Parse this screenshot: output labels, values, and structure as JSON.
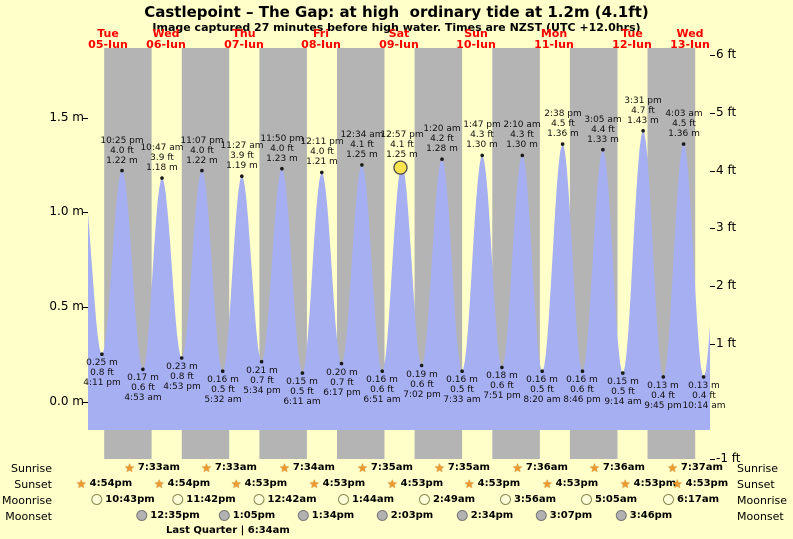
{
  "title": "Castlepoint – The Gap: at high  ordinary tide at 1.2m (4.1ft)",
  "subtitle": "Image captured 27 minutes before high water. Times are NZST (UTC +12.0hrs)",
  "moon_phase": "Last Quarter | 6:34am",
  "astro_row_labels": [
    "Sunrise",
    "Sunset",
    "Moonrise",
    "Moonset"
  ],
  "colors": {
    "page_bg": "#ffffc9",
    "day_band": "#ffffc9",
    "night_band": "#b4b4b4",
    "tide_fill": "#a6aff2",
    "day_label_red": "#ff0000",
    "marker_yellow": "#ffe44d",
    "star_gold": "#ef9a2e",
    "moonrise_icon": "#ffffd9",
    "moonset_icon": "#b2b2b2"
  },
  "chart_data": {
    "type": "area",
    "title": "Castlepoint – The Gap tide curve",
    "y_left_unit": "m",
    "y_right_unit": "ft",
    "y_left_range_m": [
      -0.28,
      1.87
    ],
    "y_right_range_ft": [
      -1,
      6
    ],
    "y_axis_left": [
      {
        "label": "1.5 m",
        "m": 1.5
      },
      {
        "label": "1.0 m",
        "m": 1.0
      },
      {
        "label": "0.5 m",
        "m": 0.5
      },
      {
        "label": "0.0 m",
        "m": 0.0
      }
    ],
    "y_axis_right": [
      {
        "label": "6 ft",
        "ft": 6
      },
      {
        "label": "5 ft",
        "ft": 5
      },
      {
        "label": "4 ft",
        "ft": 4
      },
      {
        "label": "3 ft",
        "ft": 3
      },
      {
        "label": "2 ft",
        "ft": 2
      },
      {
        "label": "1 ft",
        "ft": 1
      },
      {
        "label": "-1 ft",
        "ft": -1
      }
    ],
    "days": [
      {
        "name": "Tue",
        "date": "05-Jun"
      },
      {
        "name": "Wed",
        "date": "06-Jun"
      },
      {
        "name": "Thu",
        "date": "07-Jun"
      },
      {
        "name": "Fri",
        "date": "08-Jun"
      },
      {
        "name": "Sat",
        "date": "09-Jun"
      },
      {
        "name": "Sun",
        "date": "10-Jun"
      },
      {
        "name": "Mon",
        "date": "11-Jun"
      },
      {
        "name": "Tue",
        "date": "12-Jun"
      },
      {
        "name": "Wed",
        "date": "13-Jun"
      }
    ],
    "tide_events": [
      {
        "day": 0,
        "type": "low",
        "time": "4:11 pm",
        "height_m": 0.25,
        "height_ft": 0.8
      },
      {
        "day": 0,
        "type": "high",
        "time": "10:25 pm",
        "height_m": 1.22,
        "height_ft": 4.0
      },
      {
        "day": 1,
        "type": "low",
        "time": "4:53 am",
        "height_m": 0.17,
        "height_ft": 0.6
      },
      {
        "day": 1,
        "type": "high",
        "time": "10:47 am",
        "height_m": 1.18,
        "height_ft": 3.9
      },
      {
        "day": 1,
        "type": "low",
        "time": "4:53 pm",
        "height_m": 0.23,
        "height_ft": 0.8
      },
      {
        "day": 1,
        "type": "high",
        "time": "11:07 pm",
        "height_m": 1.22,
        "height_ft": 4.0
      },
      {
        "day": 2,
        "type": "low",
        "time": "5:32 am",
        "height_m": 0.16,
        "height_ft": 0.5
      },
      {
        "day": 2,
        "type": "high",
        "time": "11:27 am",
        "height_m": 1.19,
        "height_ft": 3.9
      },
      {
        "day": 2,
        "type": "low",
        "time": "5:34 pm",
        "height_m": 0.21,
        "height_ft": 0.7
      },
      {
        "day": 2,
        "type": "high",
        "time": "11:50 pm",
        "height_m": 1.23,
        "height_ft": 4.0
      },
      {
        "day": 3,
        "type": "low",
        "time": "6:11 am",
        "height_m": 0.15,
        "height_ft": 0.5
      },
      {
        "day": 3,
        "type": "high",
        "time": "12:11 pm",
        "height_m": 1.21,
        "height_ft": 4.0
      },
      {
        "day": 3,
        "type": "low",
        "time": "6:17 pm",
        "height_m": 0.2,
        "height_ft": 0.7
      },
      {
        "day": 4,
        "type": "high",
        "time": "12:34 am",
        "height_m": 1.25,
        "height_ft": 4.1
      },
      {
        "day": 4,
        "type": "low",
        "time": "6:51 am",
        "height_m": 0.16,
        "height_ft": 0.6
      },
      {
        "day": 4,
        "type": "high",
        "time": "12:57 pm",
        "height_m": 1.25,
        "height_ft": 4.1,
        "current": true
      },
      {
        "day": 4,
        "type": "low",
        "time": "7:02 pm",
        "height_m": 0.19,
        "height_ft": 0.6
      },
      {
        "day": 5,
        "type": "high",
        "time": "1:20 am",
        "height_m": 1.28,
        "height_ft": 4.2
      },
      {
        "day": 5,
        "type": "low",
        "time": "7:33 am",
        "height_m": 0.16,
        "height_ft": 0.5
      },
      {
        "day": 5,
        "type": "high",
        "time": "1:47 pm",
        "height_m": 1.3,
        "height_ft": 4.3
      },
      {
        "day": 5,
        "type": "low",
        "time": "7:51 pm",
        "height_m": 0.18,
        "height_ft": 0.6
      },
      {
        "day": 6,
        "type": "high",
        "time": "2:10 am",
        "height_m": 1.3,
        "height_ft": 4.3
      },
      {
        "day": 6,
        "type": "low",
        "time": "8:20 am",
        "height_m": 0.16,
        "height_ft": 0.5
      },
      {
        "day": 6,
        "type": "high",
        "time": "2:38 pm",
        "height_m": 1.36,
        "height_ft": 4.5
      },
      {
        "day": 6,
        "type": "low",
        "time": "8:46 pm",
        "height_m": 0.16,
        "height_ft": 0.6
      },
      {
        "day": 7,
        "type": "high",
        "time": "3:05 am",
        "height_m": 1.33,
        "height_ft": 4.4
      },
      {
        "day": 7,
        "type": "low",
        "time": "9:14 am",
        "height_m": 0.15,
        "height_ft": 0.5
      },
      {
        "day": 7,
        "type": "high",
        "time": "3:31 pm",
        "height_m": 1.43,
        "height_ft": 4.7
      },
      {
        "day": 7,
        "type": "low",
        "time": "9:45 pm",
        "height_m": 0.13,
        "height_ft": 0.4
      },
      {
        "day": 8,
        "type": "high",
        "time": "4:03 am",
        "height_m": 1.36,
        "height_ft": 4.5
      },
      {
        "day": 8,
        "type": "low",
        "time": "10:14 am",
        "height_m": 0.13,
        "height_ft": 0.4
      }
    ],
    "sunrise": [
      {
        "day": 1,
        "time": "7:33am"
      },
      {
        "day": 2,
        "time": "7:33am"
      },
      {
        "day": 3,
        "time": "7:34am"
      },
      {
        "day": 4,
        "time": "7:35am"
      },
      {
        "day": 5,
        "time": "7:35am"
      },
      {
        "day": 6,
        "time": "7:36am"
      },
      {
        "day": 7,
        "time": "7:36am"
      },
      {
        "day": 8,
        "time": "7:37am"
      }
    ],
    "sunset": [
      {
        "day": 0,
        "time": "4:54pm"
      },
      {
        "day": 1,
        "time": "4:54pm"
      },
      {
        "day": 2,
        "time": "4:53pm"
      },
      {
        "day": 3,
        "time": "4:53pm"
      },
      {
        "day": 4,
        "time": "4:53pm"
      },
      {
        "day": 5,
        "time": "4:53pm"
      },
      {
        "day": 6,
        "time": "4:53pm"
      },
      {
        "day": 7,
        "time": "4:53pm"
      },
      {
        "day": 8,
        "time": "4:53pm"
      }
    ],
    "moonrise": [
      {
        "day": 0,
        "time": "10:43pm"
      },
      {
        "day": 1,
        "time": "11:42pm"
      },
      {
        "day": 3,
        "time": "12:42am"
      },
      {
        "day": 4,
        "time": "1:44am"
      },
      {
        "day": 5,
        "time": "2:49am"
      },
      {
        "day": 6,
        "time": "3:56am"
      },
      {
        "day": 7,
        "time": "5:05am"
      },
      {
        "day": 8,
        "time": "6:17am"
      }
    ],
    "moonset": [
      {
        "day": 1,
        "time": "12:35pm"
      },
      {
        "day": 2,
        "time": "1:05pm"
      },
      {
        "day": 3,
        "time": "1:34pm"
      },
      {
        "day": 4,
        "time": "2:03pm"
      },
      {
        "day": 5,
        "time": "2:34pm"
      },
      {
        "day": 6,
        "time": "3:07pm"
      },
      {
        "day": 7,
        "time": "3:46pm"
      }
    ]
  }
}
